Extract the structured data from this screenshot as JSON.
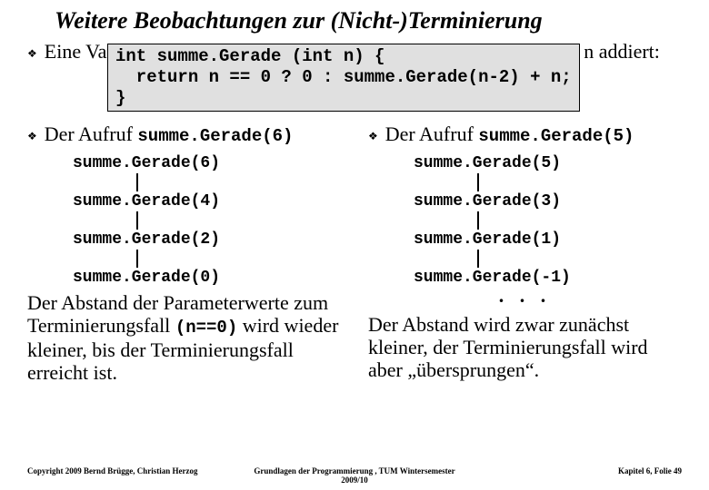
{
  "title": "Weitere Beobachtungen zur (Nicht-)Terminierung",
  "intro": "Eine Variante der Funktion Summe, die nur die geraden Zahlen bis n addiert:",
  "code": "int summe.Gerade (int n) {\n  return n == 0 ? 0 : summe.Gerade(n-2) + n;\n}",
  "left": {
    "label_prefix": "Der Aufruf ",
    "label_mono": "summe.Gerade(6)",
    "trace": [
      "summe.Gerade(6)",
      "summe.Gerade(4)",
      "summe.Gerade(2)",
      "summe.Gerade(0)"
    ],
    "para_pre": "Der Abstand der Parameterwerte zum Terminierungsfall ",
    "para_mono": "(n==0)",
    "para_post": " wird wieder kleiner, bis der Terminierungsfall erreicht ist."
  },
  "right": {
    "label_prefix": "Der Aufruf ",
    "label_mono": "summe.Gerade(5)",
    "trace": [
      "summe.Gerade(5)",
      "summe.Gerade(3)",
      "summe.Gerade(1)",
      "summe.Gerade(-1)"
    ],
    "dots": ". . .",
    "para": "Der Abstand wird zwar zunächst kleiner, der Terminierungsfall wird aber „übersprungen“."
  },
  "footer": {
    "left": "Copyright 2009 Bernd Brügge, Christian Herzog",
    "center": "Grundlagen der Programmierung ,   TUM Wintersemester 2009/10",
    "right": "Kapitel 6, Folie 49"
  },
  "colors": {
    "bg": "#ffffff",
    "text": "#000000",
    "codebox_bg": "#e0e0e0",
    "codebox_border": "#000000"
  }
}
